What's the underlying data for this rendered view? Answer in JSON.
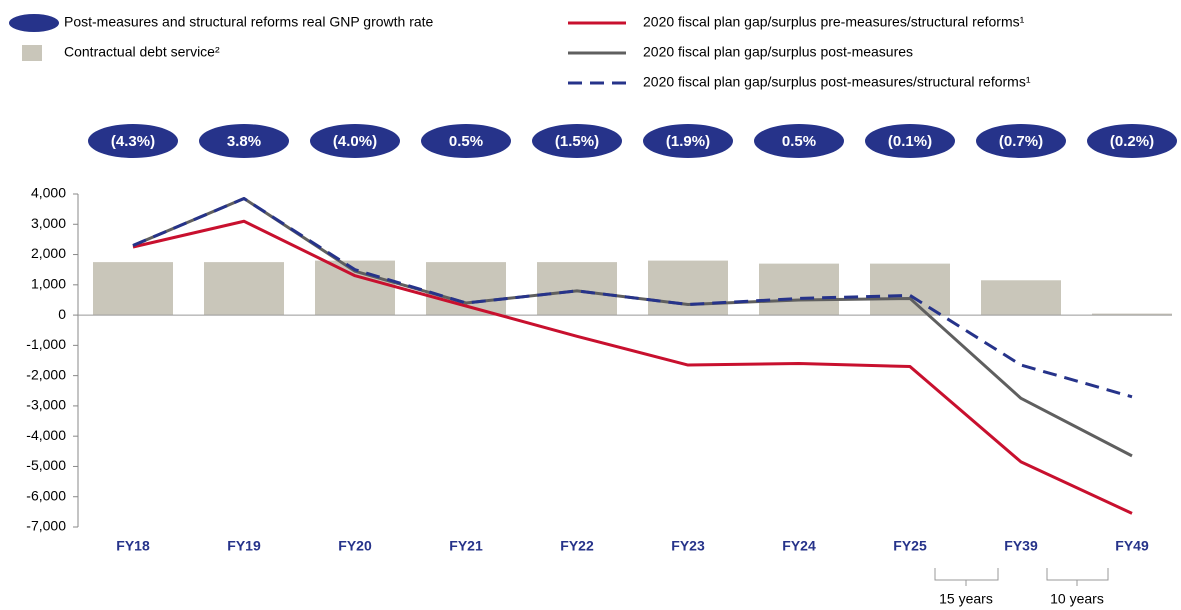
{
  "chart_data": {
    "type": "bar",
    "categories": [
      "FY18",
      "FY19",
      "FY20",
      "FY21",
      "FY22",
      "FY23",
      "FY24",
      "FY25",
      "FY39",
      "FY49"
    ],
    "growth": {
      "name": "Post-measures and structural reforms real GNP growth rate",
      "color": "#26338a",
      "values": [
        -4.3,
        3.8,
        -4.0,
        0.5,
        -1.5,
        -1.9,
        0.5,
        -0.1,
        -0.7,
        -0.2
      ],
      "value_labels": [
        "(4.3%)",
        "3.8%",
        "(4.0%)",
        "0.5%",
        "(1.5%)",
        "(1.9%)",
        "0.5%",
        "(0.1%)",
        "(0.7%)",
        "(0.2%)"
      ]
    },
    "series": [
      {
        "name": "Contractual debt service²",
        "type": "bar",
        "color": "#c9c6ba",
        "values": [
          1750,
          1750,
          1800,
          1750,
          1750,
          1800,
          1700,
          1700,
          1150,
          50
        ]
      },
      {
        "name": "2020 fiscal plan gap/surplus pre-measures/structural reforms¹",
        "type": "line",
        "color": "#c8102e",
        "dashed": false,
        "values": [
          2250,
          3100,
          1300,
          300,
          -700,
          -1650,
          -1600,
          -1700,
          -4850,
          -6550
        ]
      },
      {
        "name": "2020 fiscal plan gap/surplus post-measures",
        "type": "line",
        "color": "#5f5f5f",
        "dashed": false,
        "values": [
          2300,
          3850,
          1450,
          400,
          800,
          350,
          500,
          550,
          -2750,
          -4650
        ]
      },
      {
        "name": "2020 fiscal plan gap/surplus post-measures/structural reforms¹",
        "type": "line",
        "color": "#26338a",
        "dashed": true,
        "values": [
          2300,
          3850,
          1500,
          400,
          800,
          350,
          550,
          650,
          -1650,
          -2700
        ]
      }
    ],
    "ylim": [
      -7000,
      4000
    ],
    "yticks": [
      {
        "value": 4000,
        "label": "4,000"
      },
      {
        "value": 3000,
        "label": "3,000"
      },
      {
        "value": 2000,
        "label": "2,000"
      },
      {
        "value": 1000,
        "label": "1,000"
      },
      0,
      {
        "value": -1000,
        "label": "-1,000"
      },
      {
        "value": -2000,
        "label": "-2,000"
      },
      {
        "value": -3000,
        "label": "-3,000"
      },
      {
        "value": -4000,
        "label": "-4,000"
      },
      {
        "value": -5000,
        "label": "-5,000"
      },
      {
        "value": -6000,
        "label": "-6,000"
      },
      {
        "value": -7000,
        "label": "-7,000"
      }
    ],
    "annotations": [
      "15 years",
      "10 years"
    ]
  }
}
